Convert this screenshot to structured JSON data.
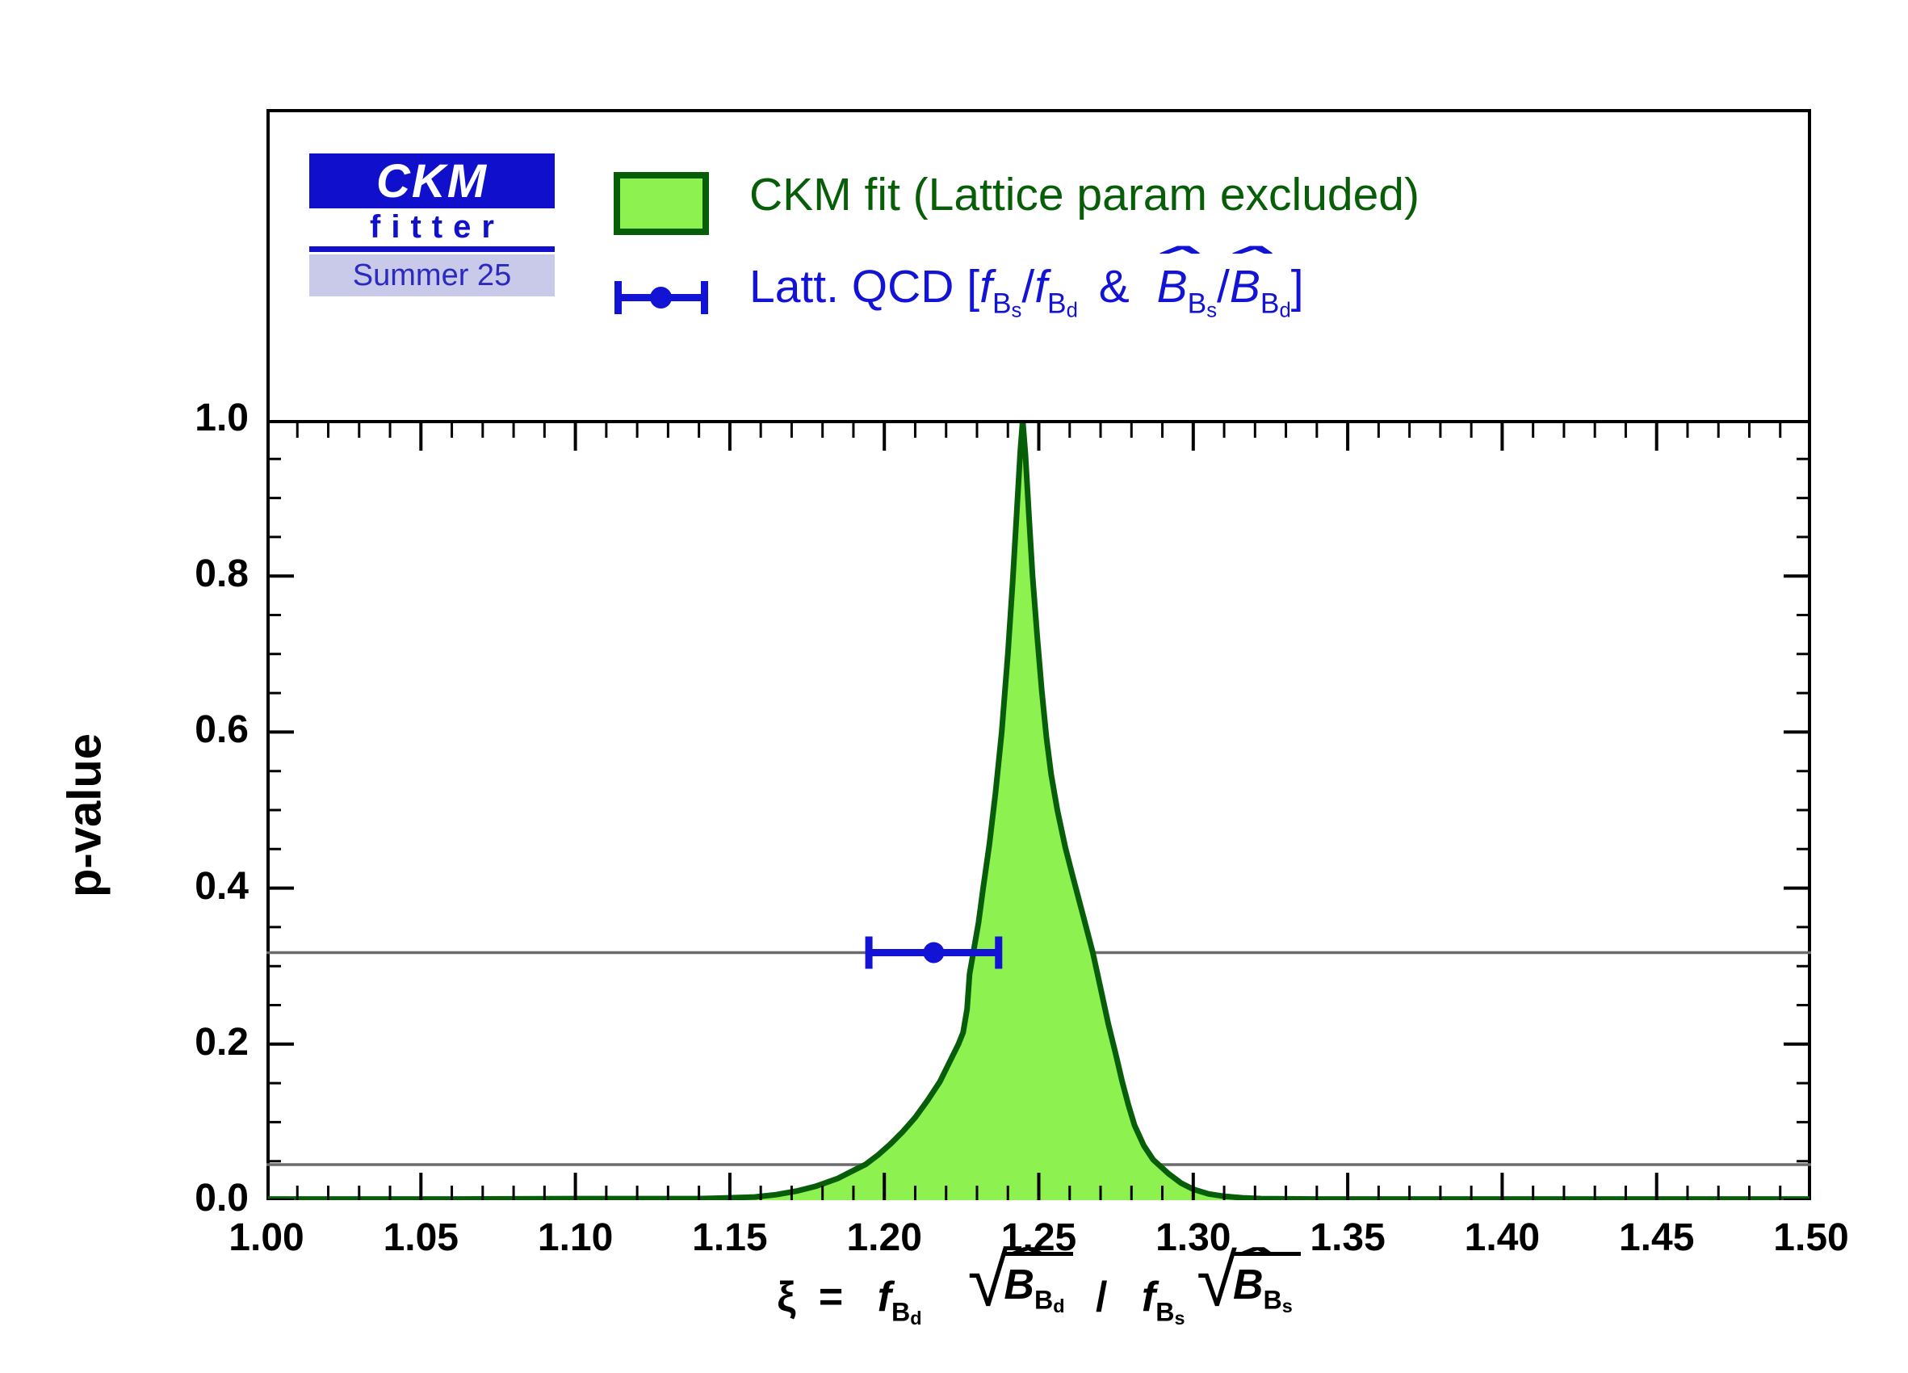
{
  "logo": {
    "title": "CKM",
    "subtitle": "fitter",
    "season": "Summer 25"
  },
  "legend": {
    "fit_label": "CKM fit (Lattice param excluded)",
    "latt_prefix": "Latt. QCD [",
    "latt_close": "]",
    "amp": "&"
  },
  "math": {
    "xi": "ξ",
    "eq": "=",
    "f": "f",
    "B": "B",
    "d": "d",
    "s": "s",
    "hat": "ˆ",
    "slash": "/",
    "sqrt": "√"
  },
  "axes": {
    "y_title": "p-value",
    "y_ticks": [
      "1.0",
      "0.8",
      "0.6",
      "0.4",
      "0.2",
      "0.0"
    ],
    "x_ticks": [
      "1.00",
      "1.05",
      "1.10",
      "1.15",
      "1.20",
      "1.25",
      "1.30",
      "1.35",
      "1.40",
      "1.45",
      "1.50"
    ]
  },
  "colors": {
    "light_green": "#8df150",
    "dark_green": "#085e08",
    "blue": "#1313d6",
    "gray": "#6b6b6b",
    "black": "#000000"
  },
  "chart_data": {
    "type": "area",
    "title": "",
    "xlabel": "xi = f_Bd sqrt(Bhat_Bd) / f_Bs sqrt(Bhat_Bs)",
    "ylabel": "p-value",
    "xlim": [
      1.0,
      1.5
    ],
    "ylim": [
      0.0,
      1.0
    ],
    "x_major_step": 0.05,
    "x_minor_step": 0.01,
    "y_major_step": 0.2,
    "y_minor_step": 0.05,
    "grid": false,
    "legend_position": "top",
    "series": [
      {
        "name": "CKM fit (Lattice param excluded)",
        "type": "area",
        "fill_color": "#8df150",
        "edge_color": "#085e08",
        "peak_x": 1.2448,
        "points": [
          [
            1.0,
            0.0015
          ],
          [
            1.06,
            0.0015
          ],
          [
            1.1,
            0.002
          ],
          [
            1.14,
            0.002
          ],
          [
            1.15,
            0.003
          ],
          [
            1.158,
            0.004
          ],
          [
            1.165,
            0.007
          ],
          [
            1.172,
            0.012
          ],
          [
            1.178,
            0.018
          ],
          [
            1.185,
            0.028
          ],
          [
            1.19,
            0.038
          ],
          [
            1.194,
            0.046
          ],
          [
            1.198,
            0.058
          ],
          [
            1.202,
            0.072
          ],
          [
            1.206,
            0.088
          ],
          [
            1.21,
            0.106
          ],
          [
            1.214,
            0.128
          ],
          [
            1.218,
            0.152
          ],
          [
            1.221,
            0.176
          ],
          [
            1.224,
            0.2
          ],
          [
            1.2255,
            0.215
          ],
          [
            1.2268,
            0.245
          ],
          [
            1.2276,
            0.29
          ],
          [
            1.229,
            0.322
          ],
          [
            1.2305,
            0.356
          ],
          [
            1.232,
            0.4
          ],
          [
            1.234,
            0.456
          ],
          [
            1.236,
            0.522
          ],
          [
            1.238,
            0.6
          ],
          [
            1.24,
            0.7
          ],
          [
            1.2415,
            0.79
          ],
          [
            1.2428,
            0.878
          ],
          [
            1.244,
            0.958
          ],
          [
            1.2448,
            1.0
          ],
          [
            1.2457,
            0.955
          ],
          [
            1.2468,
            0.878
          ],
          [
            1.248,
            0.8
          ],
          [
            1.2495,
            0.722
          ],
          [
            1.251,
            0.652
          ],
          [
            1.2525,
            0.592
          ],
          [
            1.254,
            0.546
          ],
          [
            1.256,
            0.5
          ],
          [
            1.2586,
            0.452
          ],
          [
            1.261,
            0.415
          ],
          [
            1.264,
            0.37
          ],
          [
            1.2675,
            0.317
          ],
          [
            1.27,
            0.272
          ],
          [
            1.2725,
            0.226
          ],
          [
            1.275,
            0.186
          ],
          [
            1.277,
            0.152
          ],
          [
            1.279,
            0.122
          ],
          [
            1.281,
            0.096
          ],
          [
            1.284,
            0.07
          ],
          [
            1.287,
            0.052
          ],
          [
            1.292,
            0.034
          ],
          [
            1.296,
            0.022
          ],
          [
            1.3,
            0.014
          ],
          [
            1.305,
            0.008
          ],
          [
            1.31,
            0.005
          ],
          [
            1.316,
            0.003
          ],
          [
            1.322,
            0.002
          ],
          [
            1.34,
            0.0015
          ],
          [
            1.4,
            0.0015
          ],
          [
            1.5,
            0.0015
          ]
        ]
      }
    ],
    "measurement": {
      "name": "Latt. QCD [f_Bs/f_Bd & Bhat_Bs/Bhat_Bd]",
      "x": 1.216,
      "x_err": 0.021,
      "y": 0.3173,
      "color": "#1313d6"
    },
    "reference_lines": [
      {
        "name": "one-sigma-line",
        "p": 0.3173
      },
      {
        "name": "two-sigma-line",
        "p": 0.0455
      }
    ]
  }
}
